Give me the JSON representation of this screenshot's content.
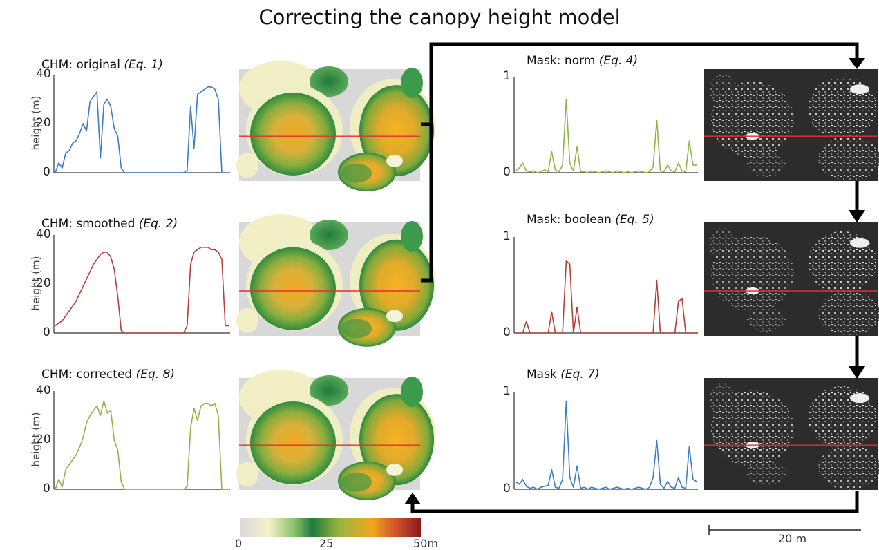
{
  "title": "Correcting the canopy height model",
  "panels": [
    {
      "id": "chm-original",
      "label": "CHM: original ",
      "eq": "(Eq. 1)"
    },
    {
      "id": "chm-smoothed",
      "label": "CHM: smoothed ",
      "eq": "(Eq. 2)"
    },
    {
      "id": "chm-corrected",
      "label": "CHM: corrected ",
      "eq": "(Eq. 8)"
    },
    {
      "id": "mask-norm",
      "label": "Mask: norm ",
      "eq": "(Eq. 4)"
    },
    {
      "id": "mask-boolean",
      "label": "Mask: boolean ",
      "eq": "(Eq. 5)"
    },
    {
      "id": "mask-final",
      "label": "Mask ",
      "eq": "(Eq. 7)"
    }
  ],
  "ylabel": "height (m)",
  "colorbar": {
    "ticks": [
      "0",
      "25",
      "50m"
    ],
    "range": [
      0,
      50
    ]
  },
  "scalebar": {
    "label": "20 m"
  },
  "colors": {
    "chm_original": "#3f7cc0",
    "chm_smoothed": "#b5403a",
    "chm_corrected": "#8db548",
    "mask_norm": "#8db548",
    "mask_boolean": "#b5403a",
    "mask_final": "#3f7cc0",
    "transect": "#e03030"
  },
  "chart_data": [
    {
      "type": "line",
      "name_ref": "CHM: original",
      "ylim": [
        0,
        40
      ],
      "yticks": [
        0,
        20,
        40
      ],
      "x": [
        0,
        2,
        4,
        6,
        8,
        10,
        12,
        14,
        16,
        18,
        20,
        22,
        24,
        26,
        28,
        30,
        32,
        34,
        36,
        38,
        40,
        42,
        44,
        46,
        48,
        50,
        52,
        54,
        56,
        58,
        60,
        62,
        64,
        66,
        68,
        70,
        72,
        74,
        76,
        78,
        80,
        82,
        84,
        86,
        88,
        90,
        92,
        94,
        96,
        98,
        100
      ],
      "y": [
        0,
        4,
        2,
        8,
        9,
        12,
        13,
        16,
        20,
        17,
        29,
        31,
        33,
        6,
        28,
        30,
        27,
        18,
        15,
        2,
        0,
        0,
        0,
        0,
        0,
        0,
        0,
        0,
        0,
        0,
        0,
        0,
        0,
        0,
        0,
        0,
        0,
        0,
        1,
        27,
        10,
        32,
        33,
        34,
        35,
        35,
        34,
        30,
        0,
        0,
        0
      ]
    },
    {
      "type": "line",
      "name_ref": "CHM: smoothed",
      "ylim": [
        0,
        40
      ],
      "yticks": [
        0,
        20,
        40
      ],
      "x": [
        0,
        2,
        4,
        6,
        8,
        10,
        12,
        14,
        16,
        18,
        20,
        22,
        24,
        26,
        28,
        30,
        32,
        34,
        36,
        38,
        40,
        42,
        44,
        46,
        48,
        50,
        52,
        54,
        56,
        58,
        60,
        62,
        64,
        66,
        68,
        70,
        72,
        74,
        76,
        78,
        80,
        82,
        84,
        86,
        88,
        90,
        92,
        94,
        96,
        98,
        100
      ],
      "y": [
        3,
        4,
        5,
        7,
        9,
        11,
        13,
        16,
        19,
        22,
        25,
        28,
        30,
        32,
        33,
        33,
        31,
        26,
        15,
        1,
        0,
        0,
        0,
        0,
        0,
        0,
        0,
        0,
        0,
        0,
        0,
        0,
        0,
        0,
        0,
        0,
        0,
        0,
        3,
        28,
        33,
        34,
        35,
        35,
        35,
        34,
        34,
        33,
        30,
        3,
        3
      ]
    },
    {
      "type": "line",
      "name_ref": "CHM: corrected",
      "ylim": [
        0,
        40
      ],
      "yticks": [
        0,
        20,
        40
      ],
      "x": [
        0,
        2,
        4,
        6,
        8,
        10,
        12,
        14,
        16,
        18,
        20,
        22,
        24,
        26,
        28,
        30,
        32,
        34,
        36,
        38,
        40,
        42,
        44,
        46,
        48,
        50,
        52,
        54,
        56,
        58,
        60,
        62,
        64,
        66,
        68,
        70,
        72,
        74,
        76,
        78,
        80,
        82,
        84,
        86,
        88,
        90,
        92,
        94,
        96,
        98,
        100
      ],
      "y": [
        0,
        4,
        1,
        8,
        10,
        12,
        14,
        17,
        21,
        27,
        30,
        32,
        34,
        30,
        36,
        31,
        32,
        20,
        16,
        3,
        0,
        0,
        0,
        0,
        0,
        0,
        0,
        0,
        0,
        0,
        0,
        0,
        0,
        0,
        0,
        0,
        0,
        0,
        1,
        25,
        33,
        28,
        34,
        35,
        35,
        34,
        35,
        30,
        0,
        0,
        0
      ]
    },
    {
      "type": "line",
      "name_ref": "Mask: norm",
      "ylim": [
        0,
        1
      ],
      "yticks": [
        0,
        1
      ],
      "x": [
        0,
        2,
        4,
        6,
        8,
        10,
        12,
        14,
        16,
        18,
        20,
        22,
        24,
        26,
        28,
        30,
        32,
        34,
        36,
        38,
        40,
        42,
        44,
        46,
        48,
        50,
        52,
        54,
        56,
        58,
        60,
        62,
        64,
        66,
        68,
        70,
        72,
        74,
        76,
        78,
        80,
        82,
        84,
        86,
        88,
        90,
        92,
        94,
        96,
        98,
        100
      ],
      "y": [
        0.02,
        0.05,
        0.1,
        0.02,
        0.01,
        0.02,
        0.0,
        0.01,
        0.03,
        0.01,
        0.22,
        0.03,
        0.01,
        0.08,
        0.76,
        0.1,
        0.02,
        0.27,
        0.01,
        0.01,
        0.0,
        0.02,
        0.01,
        0.0,
        0.01,
        0.02,
        0.01,
        0.0,
        0.02,
        0.01,
        0.0,
        0.01,
        0.0,
        0.01,
        0.02,
        0.01,
        0.0,
        0.01,
        0.06,
        0.55,
        0.02,
        0.01,
        0.08,
        0.02,
        0.01,
        0.1,
        0.02,
        0.01,
        0.33,
        0.08,
        0.08
      ]
    },
    {
      "type": "line",
      "name_ref": "Mask: boolean",
      "ylim": [
        0,
        1
      ],
      "yticks": [
        0,
        1
      ],
      "x": [
        0,
        2,
        4,
        6,
        8,
        10,
        12,
        14,
        16,
        18,
        20,
        22,
        24,
        26,
        28,
        30,
        32,
        34,
        36,
        38,
        40,
        42,
        44,
        46,
        48,
        50,
        52,
        54,
        56,
        58,
        60,
        62,
        64,
        66,
        68,
        70,
        72,
        74,
        76,
        78,
        80,
        82,
        84,
        86,
        88,
        90,
        92,
        94,
        96,
        98,
        100
      ],
      "y": [
        0,
        0,
        0,
        0.12,
        0,
        0,
        0,
        0,
        0,
        0,
        0.22,
        0,
        0,
        0,
        0.75,
        0.72,
        0,
        0.27,
        0,
        0,
        0,
        0,
        0,
        0,
        0,
        0,
        0,
        0,
        0,
        0,
        0,
        0,
        0,
        0,
        0,
        0,
        0,
        0,
        0,
        0.55,
        0,
        0,
        0,
        0,
        0,
        0.33,
        0.36,
        0,
        0,
        0,
        0
      ]
    },
    {
      "type": "line",
      "name_ref": "Mask",
      "ylim": [
        0,
        1
      ],
      "yticks": [
        0,
        1
      ],
      "x": [
        0,
        2,
        4,
        6,
        8,
        10,
        12,
        14,
        16,
        18,
        20,
        22,
        24,
        26,
        28,
        30,
        32,
        34,
        36,
        38,
        40,
        42,
        44,
        46,
        48,
        50,
        52,
        54,
        56,
        58,
        60,
        62,
        64,
        66,
        68,
        70,
        72,
        74,
        76,
        78,
        80,
        82,
        84,
        86,
        88,
        90,
        92,
        94,
        96,
        98,
        100
      ],
      "y": [
        0.08,
        0.05,
        0.1,
        0.03,
        0.01,
        0.02,
        0.0,
        0.02,
        0.03,
        0.04,
        0.2,
        0.02,
        0.01,
        0.1,
        0.9,
        0.12,
        0.02,
        0.24,
        0.01,
        0.02,
        0.0,
        0.02,
        0.01,
        0.0,
        0.01,
        0.02,
        0.0,
        0.01,
        0.02,
        0.01,
        0.0,
        0.01,
        0.0,
        0.01,
        0.02,
        0.01,
        0.0,
        0.02,
        0.12,
        0.5,
        0.05,
        0.01,
        0.08,
        0.02,
        0.01,
        0.12,
        0.02,
        0.01,
        0.44,
        0.1,
        0.08
      ]
    }
  ]
}
